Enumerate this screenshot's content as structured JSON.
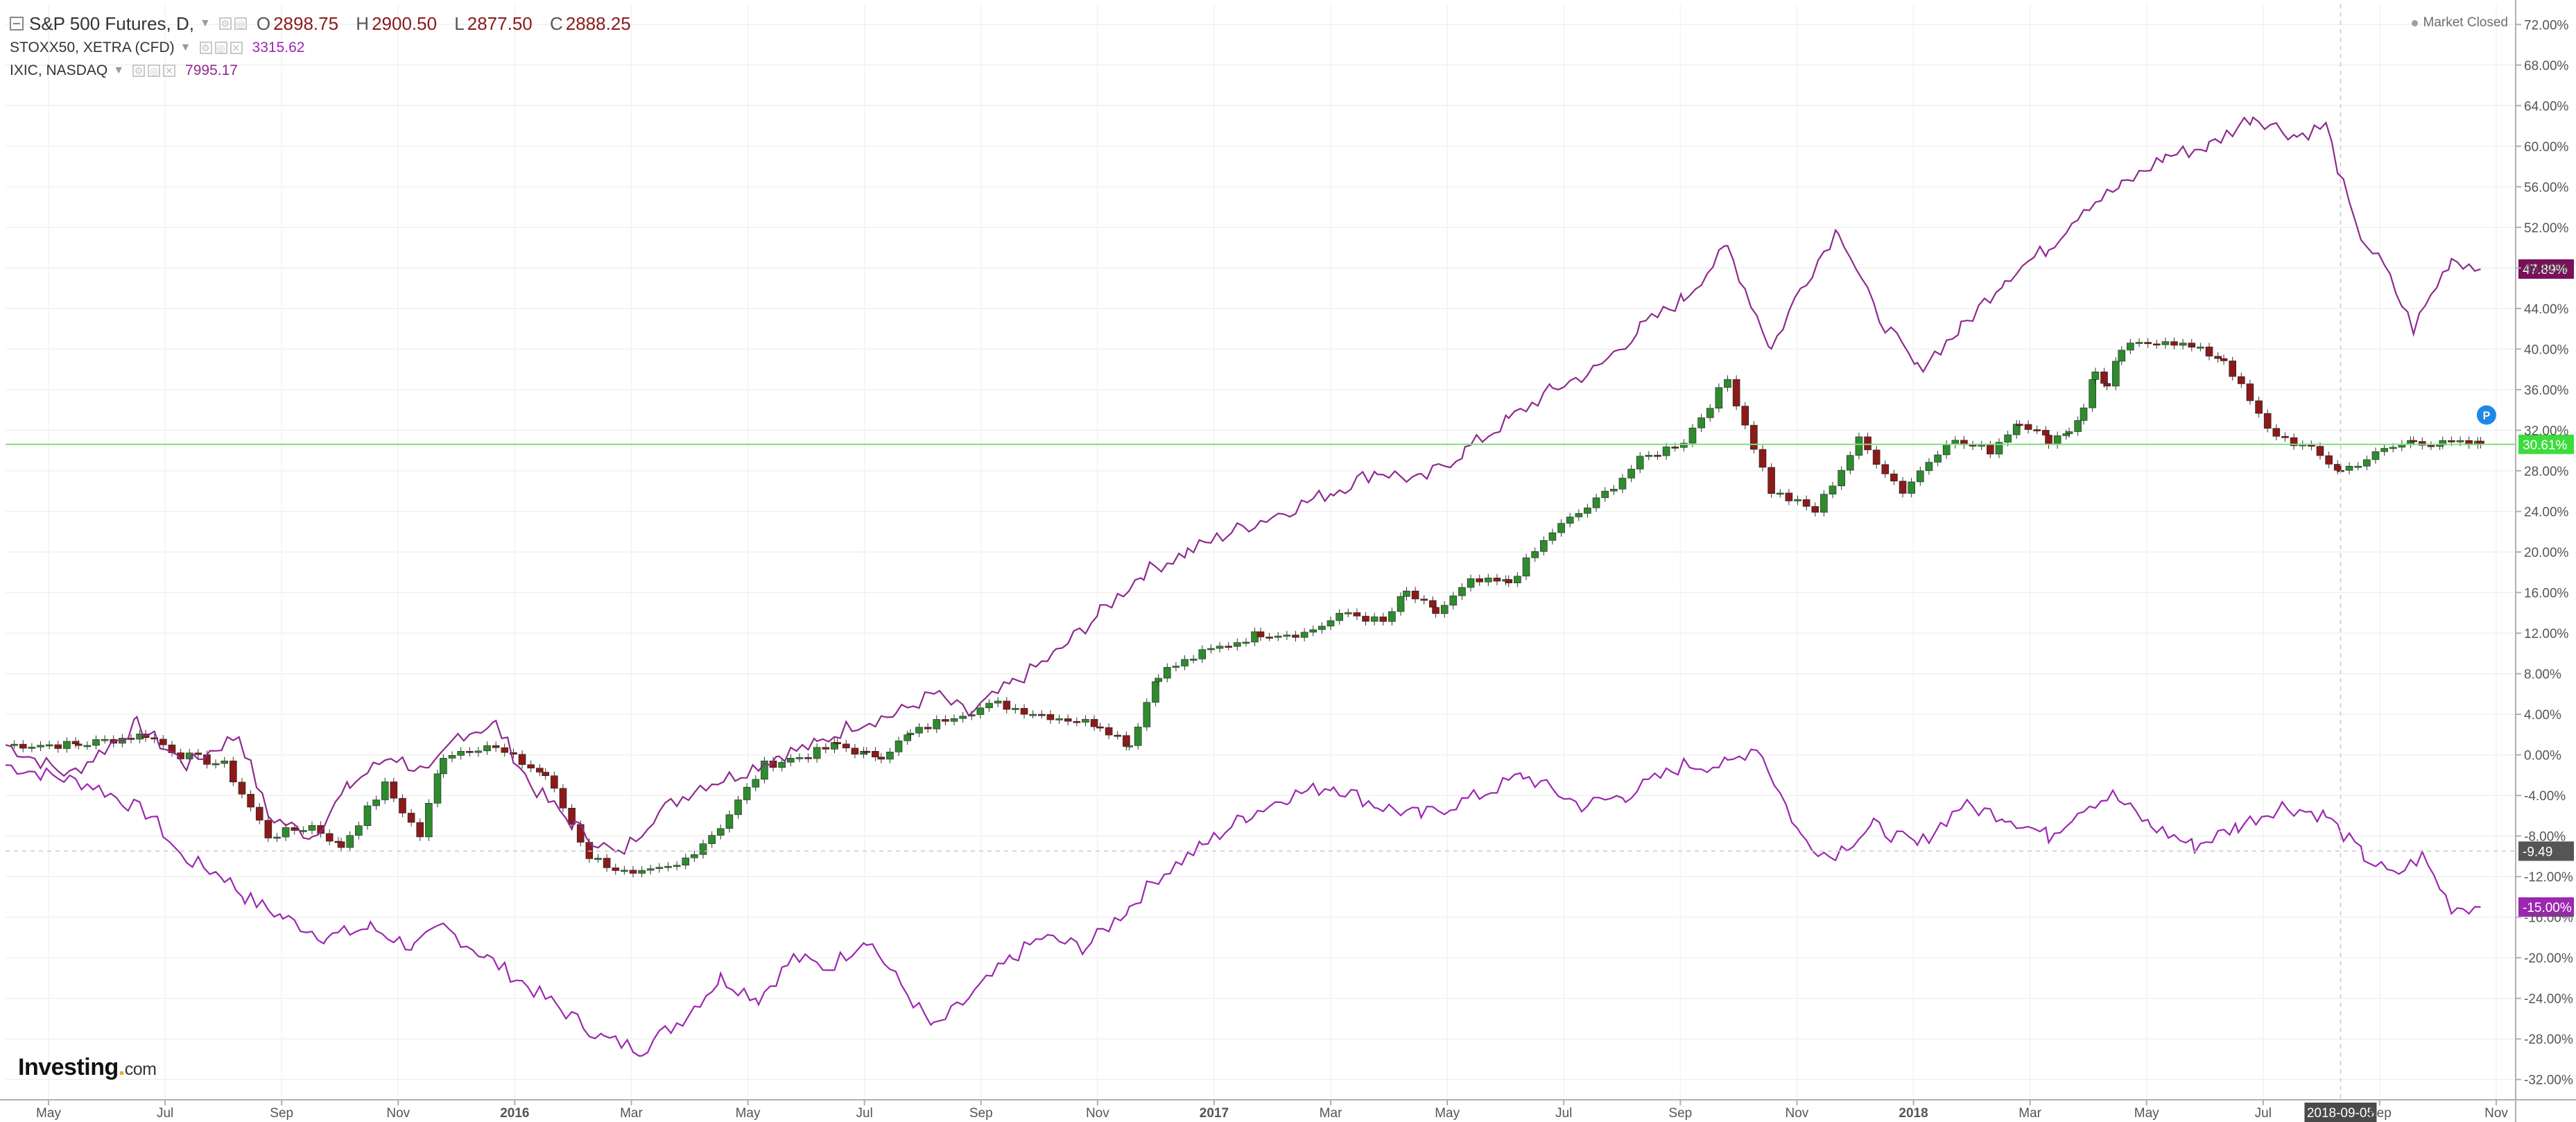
{
  "header": {
    "main": {
      "symbol": "S&P 500 Futures, D,",
      "ohlc": [
        {
          "k": "O",
          "v": "2898.75"
        },
        {
          "k": "H",
          "v": "2900.50"
        },
        {
          "k": "L",
          "v": "2877.50"
        },
        {
          "k": "C",
          "v": "2888.25"
        }
      ]
    },
    "compare": [
      {
        "symbol": "STOXX50, XETRA (CFD)",
        "value": "3315.62",
        "color": "#9c27b0"
      },
      {
        "symbol": "IXIC, NASDAQ",
        "value": "7995.17",
        "color": "#8e2a8e"
      }
    ],
    "status": "Market Closed"
  },
  "logo": {
    "main": "Investing",
    "tld": "com"
  },
  "chart_data": {
    "type": "line",
    "xlabel": "",
    "ylabel": "",
    "x_ticks": [
      "May",
      "Jul",
      "Sep",
      "Nov",
      "2016",
      "Mar",
      "May",
      "Jul",
      "Sep",
      "Nov",
      "2017",
      "Mar",
      "May",
      "Jul",
      "Sep",
      "Nov",
      "2018",
      "Mar",
      "May",
      "Jul",
      "Sep",
      "Nov"
    ],
    "x_bold": [
      "2016",
      "2017",
      "2018"
    ],
    "y_ticks": [
      "72.00%",
      "68.00%",
      "64.00%",
      "60.00%",
      "56.00%",
      "52.00%",
      "48.00%",
      "44.00%",
      "40.00%",
      "36.00%",
      "32.00%",
      "28.00%",
      "24.00%",
      "20.00%",
      "16.00%",
      "12.00%",
      "8.00%",
      "4.00%",
      "0.00%",
      "-4.00%",
      "-8.00%",
      "-12.00%",
      "-16.00%",
      "-20.00%",
      "-24.00%",
      "-28.00%",
      "-32.00%"
    ],
    "ylim": [
      -34,
      74
    ],
    "grid": true,
    "series": [
      {
        "name": "S&P 500 Futures",
        "style": "candles",
        "color_up": "#2e8b2e",
        "color_down": "#8b1a1a",
        "x": [
          0,
          25,
          48,
          60,
          75,
          90,
          105,
          115,
          130,
          142,
          150,
          165,
          185,
          200,
          215,
          230,
          245,
          260,
          275,
          285,
          295,
          300,
          310,
          325,
          340,
          355,
          375,
          385,
          395,
          410,
          430,
          445,
          460,
          472,
          480,
          490,
          502,
          515,
          530,
          545,
          560,
          575,
          590,
          605,
          620,
          635,
          650,
          665,
          680,
          690,
          700,
          707,
          712,
          716,
          720,
          725,
          740,
          760,
          775,
          790,
          800,
          815,
          825,
          835,
          848
        ],
        "y": [
          1,
          1,
          2,
          0,
          -1,
          -8,
          -7,
          -9,
          -3,
          -8,
          0,
          1,
          -2,
          -10,
          -12,
          -11,
          -7,
          -1,
          0,
          1,
          0,
          0,
          2,
          4,
          5,
          4,
          3,
          1,
          8,
          10,
          12,
          12,
          14,
          13,
          16,
          14,
          17,
          17,
          22,
          25,
          29,
          31,
          37,
          26,
          24,
          31,
          26,
          31,
          30,
          33,
          31,
          32,
          34,
          38,
          36,
          40,
          41,
          39,
          32,
          30,
          28,
          30,
          31,
          30.61,
          30.61
        ]
      },
      {
        "name": "STOXX50, XETRA (CFD)",
        "style": "line",
        "color": "#9c27b0",
        "x": [
          0,
          30,
          50,
          60,
          75,
          82,
          95,
          110,
          125,
          140,
          150,
          165,
          175,
          190,
          205,
          218,
          232,
          245,
          258,
          270,
          282,
          295,
          305,
          318,
          330,
          345,
          355,
          370,
          385,
          395,
          410,
          425,
          440,
          455,
          470,
          485,
          505,
          520,
          540,
          555,
          575,
          590,
          600,
          615,
          625,
          640,
          655,
          670,
          685,
          700,
          712,
          722,
          735,
          750,
          765,
          780,
          795,
          808,
          818,
          828,
          838,
          848
        ],
        "y": [
          -1,
          -3,
          -6,
          -10,
          -12,
          -14,
          -16,
          -18,
          -17,
          -19,
          -17,
          -20,
          -22,
          -25,
          -28,
          -29,
          -26,
          -22,
          -24,
          -20,
          -21,
          -18,
          -22,
          -27,
          -24,
          -20,
          -18,
          -19,
          -15,
          -12,
          -9,
          -6,
          -4,
          -3,
          -5,
          -6,
          -4,
          -2,
          -5,
          -4,
          -1,
          -1,
          1,
          -8,
          -10,
          -7,
          -9,
          -5,
          -6,
          -8,
          -5,
          -4,
          -7,
          -9,
          -7,
          -5,
          -6,
          -10,
          -12,
          -10,
          -15,
          -15
        ]
      },
      {
        "name": "IXIC, NASDAQ",
        "style": "line",
        "color": "#8e2a8e",
        "x": [
          0,
          22,
          45,
          62,
          80,
          90,
          105,
          118,
          132,
          145,
          155,
          168,
          180,
          195,
          210,
          222,
          238,
          250,
          265,
          278,
          290,
          305,
          318,
          330,
          345,
          360,
          375,
          390,
          405,
          420,
          438,
          455,
          470,
          485,
          500,
          515,
          530,
          545,
          560,
          575,
          590,
          605,
          615,
          628,
          640,
          655,
          670,
          685,
          700,
          712,
          725,
          740,
          755,
          770,
          785,
          795,
          805,
          815,
          825,
          838,
          848
        ],
        "y": [
          1,
          -2,
          3,
          -1,
          2,
          -6,
          -8,
          -3,
          0,
          -2,
          2,
          3,
          -3,
          -7,
          -10,
          -6,
          -3,
          -2,
          0,
          1,
          3,
          4,
          6,
          4,
          7,
          10,
          14,
          18,
          20,
          22,
          24,
          26,
          28,
          27,
          30,
          33,
          36,
          38,
          42,
          45,
          50,
          40,
          46,
          52,
          44,
          38,
          42,
          47,
          50,
          54,
          56,
          59,
          60,
          63,
          61,
          62,
          52,
          48,
          42,
          49,
          47.89
        ]
      }
    ],
    "last_values": [
      {
        "label": "47.89%",
        "value": 47.89,
        "color": "#7a0f5a"
      },
      {
        "label": "30.61%",
        "value": 30.61,
        "color": "#3ddc3d"
      },
      {
        "label": "-9.49",
        "value": -9.49,
        "color": "#555555"
      },
      {
        "label": "-15.00%",
        "value": -15.0,
        "color": "#9c27b0"
      }
    ],
    "crosshair": {
      "x_label": "2018-09-05",
      "x_value": 800
    },
    "marker_badge": "P"
  }
}
